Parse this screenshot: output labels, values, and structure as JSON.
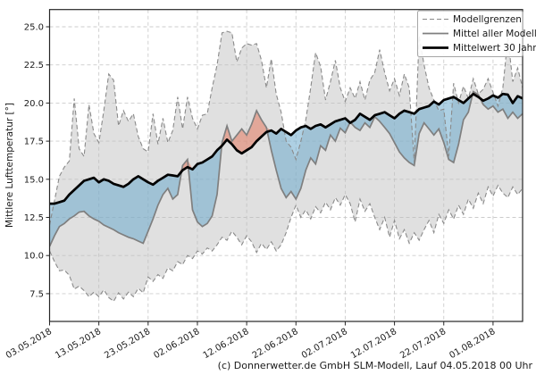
{
  "footer": {
    "credit": "(c) Donnerwetter.de GmbH SLM-Modell, Lauf 04.05.2018 00 Uhr"
  },
  "chart_data": {
    "type": "area",
    "title": "",
    "ylabel": "Mittlere Lufttemperatur [°]",
    "xlabel": "",
    "grid": true,
    "legend_position": "upper right",
    "ylim": [
      5.7,
      26.15
    ],
    "y_ticks": [
      25.0,
      22.5,
      20.0,
      17.5,
      15.0,
      12.5,
      10.0,
      7.5
    ],
    "y_tick_labels": [
      "25.0",
      "22.5",
      "20.0",
      "17.5",
      "15.0",
      "12.5",
      "10.0",
      "7.5"
    ],
    "days_total": 96,
    "x_tick_days": [
      0,
      10,
      20,
      30,
      40,
      50,
      60,
      70,
      80,
      90
    ],
    "x_tick_labels": [
      "03.05.2018",
      "13.05.2018",
      "23.05.2018",
      "02.06.2018",
      "12.06.2018",
      "22.06.2018",
      "02.07.2018",
      "12.07.2018",
      "22.07.2018",
      "01.08.2018"
    ],
    "legend": [
      {
        "label": "Modellgrenzen",
        "style": "dashed-gray"
      },
      {
        "label": "Mittel aller Modelle",
        "style": "solid-gray"
      },
      {
        "label": "Mittelwert 30 Jahre",
        "style": "solid-black-thick"
      }
    ],
    "series": [
      {
        "name": "model_max",
        "role": "Modellgrenzen obere Grenze",
        "values": [
          12.0,
          13.6,
          15.2,
          15.8,
          16.2,
          20.3,
          17.0,
          16.5,
          19.9,
          18.0,
          17.4,
          19.5,
          21.9,
          21.5,
          18.5,
          19.5,
          18.8,
          19.3,
          17.8,
          17.0,
          16.8,
          19.3,
          17.3,
          19.0,
          17.4,
          18.2,
          20.4,
          18.3,
          20.4,
          19.0,
          18.3,
          19.2,
          19.3,
          21.0,
          22.5,
          24.6,
          24.7,
          24.6,
          22.7,
          23.6,
          23.9,
          23.8,
          23.9,
          22.8,
          21.0,
          22.9,
          20.6,
          19.4,
          17.5,
          17.1,
          16.3,
          17.5,
          18.9,
          21.0,
          23.3,
          22.4,
          20.2,
          21.4,
          22.8,
          21.0,
          20.1,
          21.0,
          20.3,
          21.4,
          20.2,
          21.5,
          22.0,
          23.5,
          22.0,
          20.8,
          21.6,
          20.5,
          21.9,
          21.0,
          16.1,
          24.4,
          22.5,
          21.0,
          20.2,
          19.5,
          19.6,
          16.5,
          21.3,
          20.0,
          21.1,
          20.3,
          21.6,
          20.6,
          20.9,
          21.6,
          20.7,
          19.8,
          21.0,
          24.3,
          21.4,
          22.3,
          21.0
        ]
      },
      {
        "name": "model_min",
        "role": "Modellgrenzen untere Grenze",
        "values": [
          10.3,
          9.6,
          9.0,
          9.05,
          8.7,
          7.8,
          8.0,
          7.7,
          7.3,
          7.6,
          7.3,
          7.75,
          7.25,
          7.0,
          7.55,
          7.15,
          7.6,
          7.3,
          7.85,
          7.55,
          8.6,
          8.3,
          8.75,
          8.5,
          9.2,
          9.0,
          9.6,
          9.4,
          10.0,
          9.8,
          10.3,
          10.1,
          10.5,
          10.3,
          10.7,
          11.2,
          11.0,
          11.6,
          11.2,
          10.7,
          11.3,
          10.9,
          10.2,
          10.8,
          10.4,
          10.9,
          10.3,
          10.7,
          11.5,
          12.5,
          13.3,
          12.5,
          13.0,
          12.4,
          13.2,
          12.8,
          13.5,
          13.0,
          13.8,
          13.3,
          14.0,
          13.4,
          12.2,
          13.7,
          12.9,
          13.4,
          12.5,
          11.7,
          12.5,
          11.2,
          12.3,
          11.1,
          11.7,
          10.8,
          11.5,
          11.0,
          11.7,
          12.3,
          11.5,
          12.7,
          12.1,
          13.0,
          12.4,
          13.3,
          12.7,
          13.7,
          13.1,
          14.1,
          13.4,
          14.5,
          13.9,
          14.6,
          14.1,
          13.8,
          14.5,
          14.0,
          14.4
        ]
      },
      {
        "name": "model_mean",
        "role": "Mittel aller Modelle",
        "values": [
          10.6,
          11.3,
          11.9,
          12.1,
          12.4,
          12.6,
          12.85,
          12.9,
          12.6,
          12.4,
          12.25,
          12.0,
          11.85,
          11.7,
          11.5,
          11.35,
          11.2,
          11.1,
          10.95,
          10.8,
          11.6,
          12.4,
          13.3,
          14.0,
          14.4,
          13.7,
          14.0,
          15.9,
          16.3,
          13.0,
          12.2,
          11.9,
          12.1,
          12.6,
          14.0,
          17.4,
          18.5,
          17.5,
          17.9,
          18.3,
          17.9,
          18.6,
          19.5,
          18.9,
          18.4,
          16.9,
          15.6,
          14.4,
          13.8,
          14.2,
          13.7,
          14.4,
          15.6,
          16.4,
          16.0,
          17.2,
          16.9,
          17.9,
          17.5,
          18.35,
          18.05,
          18.75,
          18.4,
          18.2,
          18.7,
          18.4,
          19.1,
          18.8,
          18.4,
          18.0,
          17.4,
          16.8,
          16.4,
          16.1,
          15.9,
          18.0,
          18.7,
          18.3,
          17.9,
          18.3,
          17.4,
          16.3,
          16.1,
          17.3,
          18.9,
          19.4,
          20.75,
          20.55,
          19.9,
          19.6,
          19.8,
          19.4,
          19.6,
          19.0,
          19.4,
          19.0,
          19.3
        ]
      },
      {
        "name": "mean_30y",
        "role": "Mittelwert 30 Jahre",
        "values": [
          13.4,
          13.4,
          13.5,
          13.6,
          14.0,
          14.3,
          14.6,
          14.9,
          15.0,
          15.1,
          14.8,
          15.0,
          14.9,
          14.7,
          14.6,
          14.5,
          14.7,
          15.0,
          15.2,
          15.0,
          14.8,
          14.65,
          14.9,
          15.1,
          15.3,
          15.25,
          15.2,
          15.6,
          15.8,
          15.65,
          16.0,
          16.1,
          16.3,
          16.5,
          16.9,
          17.2,
          17.6,
          17.3,
          16.9,
          16.7,
          16.9,
          17.1,
          17.5,
          17.8,
          18.1,
          18.2,
          18.0,
          18.3,
          18.1,
          17.9,
          18.2,
          18.4,
          18.5,
          18.3,
          18.5,
          18.6,
          18.4,
          18.6,
          18.8,
          18.9,
          19.0,
          18.7,
          18.9,
          19.3,
          19.1,
          18.9,
          19.2,
          19.3,
          19.4,
          19.2,
          19.0,
          19.3,
          19.5,
          19.4,
          19.3,
          19.6,
          19.7,
          19.8,
          20.1,
          19.9,
          20.2,
          20.3,
          20.4,
          20.2,
          20.0,
          20.3,
          20.6,
          20.4,
          20.15,
          20.3,
          20.5,
          20.35,
          20.6,
          20.55,
          20.0,
          20.45,
          20.3
        ]
      }
    ],
    "colors": {
      "model_range_fill": "rgba(190,190,190,0.48)",
      "below_avg_fill": "rgba(107,170,204,0.55)",
      "above_avg_fill": "rgba(228,120,95,0.55)",
      "model_boundary_line": "#8a8a8a",
      "model_mean_line": "#7f7f7f",
      "mean_30y_line": "#000000",
      "grid_line": "#cccccc",
      "axis": "#262626"
    }
  }
}
